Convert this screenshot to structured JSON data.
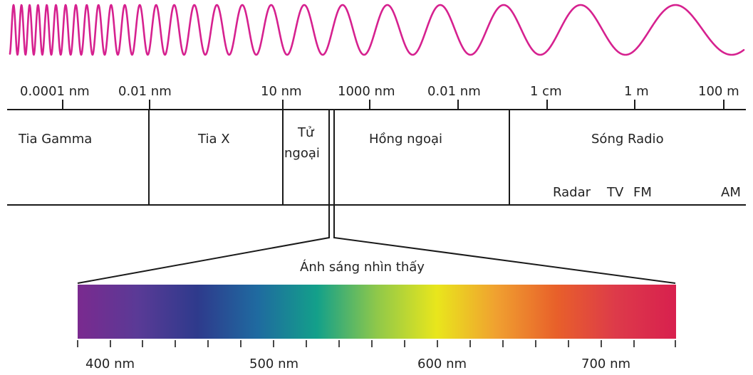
{
  "colors": {
    "wave": "#d6218f",
    "ink": "#1a1a1a",
    "spectrum_stops": [
      "#7a2a8f",
      "#5a3a96",
      "#2e3a8c",
      "#1f6aa0",
      "#13a08a",
      "#8fc84a",
      "#e9e61c",
      "#f0a030",
      "#e8602a",
      "#dd3a4a",
      "#d8204e"
    ]
  },
  "scale_labels": [
    "0.0001 nm",
    "0.01 nm",
    "10 nm",
    "1000 nm",
    "0.01 nm",
    "1 cm",
    "1 m",
    "100 m"
  ],
  "regions": {
    "gamma": "Tia Gamma",
    "xray": "Tia X",
    "uv_line1": "Tử",
    "uv_line2": "ngoại",
    "infrared": "Hồng ngoại",
    "radio": "Sóng Radio"
  },
  "radio_subbands": [
    "Radar",
    "TV",
    "FM",
    "AM"
  ],
  "visible": {
    "title": "Ánh sáng nhìn thấy",
    "tick_labels": [
      "400 nm",
      "500 nm",
      "600 nm",
      "700 nm"
    ]
  }
}
